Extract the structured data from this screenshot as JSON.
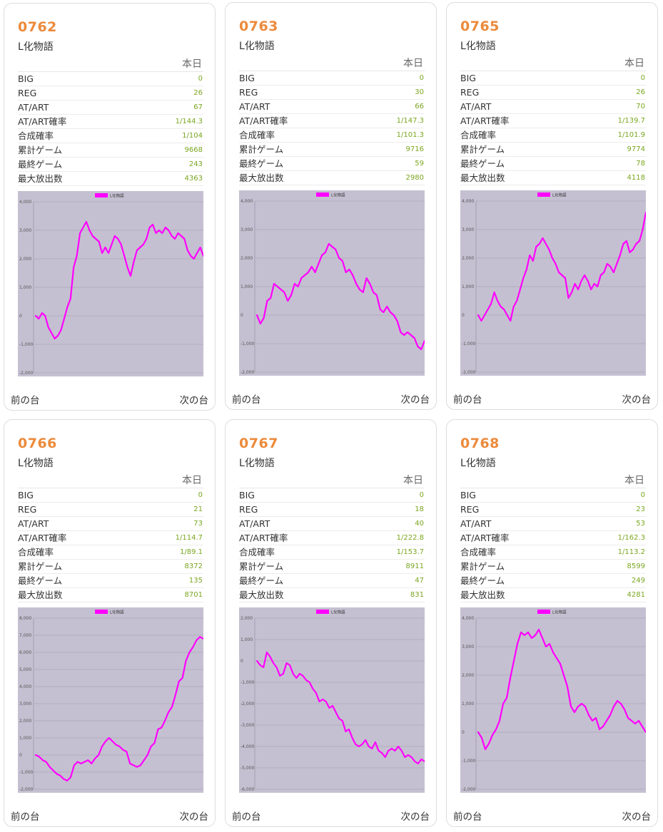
{
  "labels": {
    "today": "本日",
    "prev": "前の台",
    "next": "次の台",
    "stat_names": [
      "BIG",
      "REG",
      "AT/ART",
      "AT/ART確率",
      "合成確率",
      "累計ゲーム",
      "最終ゲーム",
      "最大放出数"
    ]
  },
  "colors": {
    "series": "#ff00ff",
    "plot_bg": "#c5c0d1",
    "number": "#ec8a3b",
    "value": "#7aa61f"
  },
  "cards": [
    {
      "number": "0762",
      "machine": "L化物語",
      "stats": [
        "0",
        "26",
        "67",
        "1/144.3",
        "1/104",
        "9668",
        "243",
        "4363"
      ],
      "chart_data": {
        "type": "line",
        "legend": "L化物語",
        "ylim": [
          -2000,
          4000
        ],
        "yticks": [
          "4,000",
          "3,000",
          "2,000",
          "1,000",
          "0",
          "-1,000",
          "-2,000"
        ],
        "values": [
          0,
          -100,
          100,
          0,
          -400,
          -600,
          -800,
          -700,
          -500,
          -100,
          300,
          600,
          1700,
          2100,
          2900,
          3100,
          3300,
          3000,
          2800,
          2700,
          2600,
          2200,
          2400,
          2200,
          2500,
          2800,
          2700,
          2500,
          2100,
          1700,
          1400,
          1900,
          2300,
          2400,
          2500,
          2700,
          3100,
          3200,
          2900,
          3000,
          2900,
          3100,
          3000,
          2800,
          2700,
          2900,
          2800,
          2700,
          2300,
          2100,
          2000,
          2200,
          2400,
          2100
        ]
      }
    },
    {
      "number": "0763",
      "machine": "L化物語",
      "stats": [
        "0",
        "30",
        "66",
        "1/147.3",
        "1/101.3",
        "9716",
        "59",
        "2980"
      ],
      "chart_data": {
        "type": "line",
        "legend": "L化物語",
        "ylim": [
          -2000,
          4000
        ],
        "yticks": [
          "4,000",
          "3,000",
          "2,000",
          "1,000",
          "0",
          "-1,000",
          "-2,000"
        ],
        "values": [
          0,
          -300,
          -100,
          500,
          600,
          1100,
          1000,
          900,
          800,
          500,
          700,
          1100,
          1000,
          1300,
          1400,
          1500,
          1700,
          1500,
          1800,
          2100,
          2200,
          2500,
          2400,
          2300,
          2000,
          1900,
          1500,
          1600,
          1400,
          1100,
          900,
          800,
          1300,
          1100,
          800,
          700,
          200,
          100,
          300,
          100,
          0,
          -200,
          -600,
          -700,
          -600,
          -700,
          -800,
          -1100,
          -1200,
          -900
        ]
      }
    },
    {
      "number": "0765",
      "machine": "L化物語",
      "stats": [
        "0",
        "26",
        "70",
        "1/139.7",
        "1/101.9",
        "9774",
        "78",
        "4118"
      ],
      "chart_data": {
        "type": "line",
        "legend": "L化物語",
        "ylim": [
          -2000,
          4000
        ],
        "yticks": [
          "4,000",
          "3,000",
          "2,000",
          "1,000",
          "0",
          "-1,000",
          "-2,000"
        ],
        "values": [
          0,
          -200,
          0,
          200,
          400,
          800,
          500,
          300,
          200,
          0,
          -200,
          300,
          500,
          900,
          1300,
          1600,
          2100,
          1900,
          2400,
          2500,
          2700,
          2500,
          2300,
          2000,
          1800,
          1500,
          1400,
          1300,
          600,
          800,
          1100,
          900,
          1200,
          1400,
          1200,
          900,
          1100,
          1000,
          1400,
          1500,
          1800,
          1700,
          1500,
          1800,
          2100,
          2500,
          2600,
          2200,
          2300,
          2500,
          2600,
          3000,
          3600
        ]
      }
    },
    {
      "number": "0766",
      "machine": "L化物語",
      "stats": [
        "0",
        "21",
        "73",
        "1/114.7",
        "1/89.1",
        "8372",
        "135",
        "8701"
      ],
      "chart_data": {
        "type": "line",
        "legend": "L化物語",
        "ylim": [
          -2000,
          8000
        ],
        "yticks": [
          "8,000",
          "7,000",
          "6,000",
          "5,000",
          "4,000",
          "3,000",
          "2,000",
          "1,000",
          "0",
          "-1,000",
          "-2,000"
        ],
        "values": [
          0,
          -100,
          -300,
          -400,
          -700,
          -900,
          -1100,
          -1200,
          -1400,
          -1500,
          -1300,
          -600,
          -400,
          -500,
          -400,
          -300,
          -500,
          -200,
          0,
          500,
          800,
          1000,
          800,
          600,
          500,
          300,
          200,
          -500,
          -600,
          -700,
          -600,
          -300,
          0,
          500,
          700,
          1500,
          1600,
          2000,
          2500,
          2800,
          3500,
          4300,
          4500,
          5500,
          6000,
          6300,
          6700,
          6900,
          6800
        ]
      }
    },
    {
      "number": "0767",
      "machine": "L化物語",
      "stats": [
        "0",
        "18",
        "40",
        "1/222.8",
        "1/153.7",
        "8911",
        "47",
        "831"
      ],
      "chart_data": {
        "type": "line",
        "legend": "L化物語",
        "ylim": [
          -6000,
          2000
        ],
        "yticks": [
          "2,000",
          "1,000",
          "0",
          "-1,000",
          "-2,000",
          "-3,000",
          "-4,000",
          "-5,000",
          "-6,000"
        ],
        "values": [
          0,
          -200,
          -300,
          400,
          200,
          -100,
          -300,
          -700,
          -600,
          -100,
          -200,
          -600,
          -800,
          -600,
          -700,
          -900,
          -1000,
          -1300,
          -1500,
          -1900,
          -1800,
          -1900,
          -2200,
          -2100,
          -2400,
          -2700,
          -2800,
          -3300,
          -3200,
          -3600,
          -3900,
          -4000,
          -3900,
          -3700,
          -4000,
          -4100,
          -3800,
          -4200,
          -4300,
          -4500,
          -4200,
          -4100,
          -4200,
          -4000,
          -4200,
          -4500,
          -4400,
          -4500,
          -4700,
          -4800,
          -4600,
          -4700
        ]
      }
    },
    {
      "number": "0768",
      "machine": "L化物語",
      "stats": [
        "0",
        "23",
        "53",
        "1/162.3",
        "1/113.2",
        "8599",
        "249",
        "4281"
      ],
      "chart_data": {
        "type": "line",
        "legend": "L化物語",
        "ylim": [
          -2000,
          4000
        ],
        "yticks": [
          "4,000",
          "3,000",
          "2,000",
          "1,000",
          "0",
          "-1,000",
          "-2,000"
        ],
        "values": [
          0,
          -200,
          -600,
          -400,
          -100,
          100,
          400,
          1000,
          1200,
          1900,
          2500,
          3100,
          3500,
          3400,
          3500,
          3300,
          3400,
          3600,
          3300,
          3000,
          3100,
          2800,
          2600,
          2400,
          2000,
          1600,
          900,
          700,
          900,
          1000,
          900,
          600,
          400,
          500,
          100,
          200,
          400,
          600,
          900,
          1100,
          1000,
          800,
          500,
          400,
          300,
          400,
          200,
          0
        ]
      }
    }
  ]
}
